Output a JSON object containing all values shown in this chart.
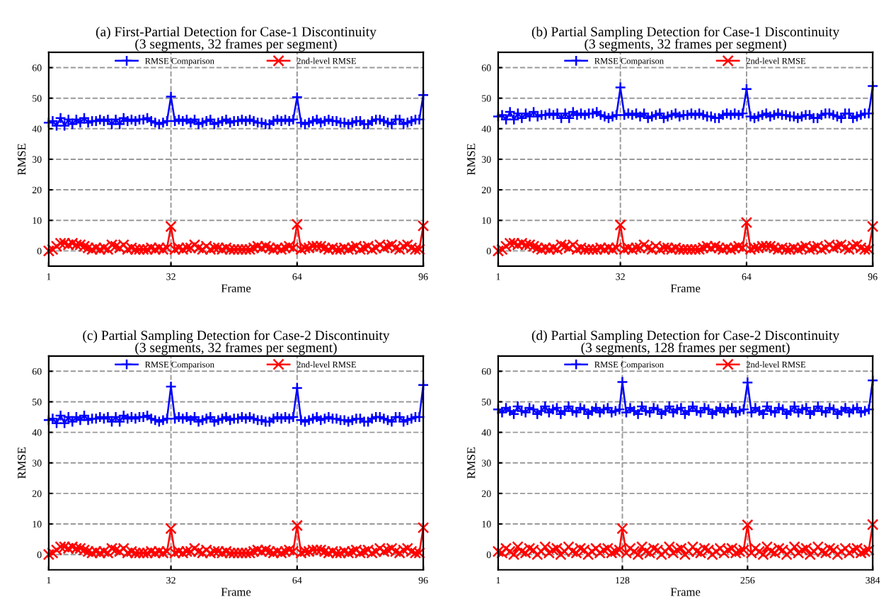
{
  "chart_data": [
    {
      "type": "line",
      "title": "(a) First-Partial Detection for Case-1 Discontinuity",
      "subtitle": "(3 segments, 32 frames per segment)",
      "xlabel": "Frame",
      "ylabel": "RMSE",
      "x": [
        1,
        2,
        3,
        4,
        5,
        6,
        7,
        8,
        9,
        10,
        11,
        12,
        13,
        14,
        15,
        16,
        17,
        18,
        19,
        20,
        21,
        22,
        23,
        24,
        25,
        26,
        27,
        28,
        29,
        30,
        31,
        32,
        33,
        34,
        35,
        36,
        37,
        38,
        39,
        40,
        41,
        42,
        43,
        44,
        45,
        46,
        47,
        48,
        49,
        50,
        51,
        52,
        53,
        54,
        55,
        56,
        57,
        58,
        59,
        60,
        61,
        62,
        63,
        64,
        65,
        66,
        67,
        68,
        69,
        70,
        71,
        72,
        73,
        74,
        75,
        76,
        77,
        78,
        79,
        80,
        81,
        82,
        83,
        84,
        85,
        86,
        87,
        88,
        89,
        90,
        91,
        92,
        93,
        94,
        95,
        96
      ],
      "xlim": [
        1,
        96
      ],
      "xticks": [
        1,
        32,
        64,
        96
      ],
      "ylim": [
        -5,
        65
      ],
      "yticks": [
        0,
        10,
        20,
        30,
        40,
        50,
        60
      ],
      "grid": true,
      "legend": "top",
      "line_style": "solid",
      "series": [
        {
          "name": "RMSE Comparison",
          "color": "#0000ff",
          "marker": "cross",
          "values": [
            42,
            42.5,
            41,
            43.5,
            41,
            43,
            41.5,
            43,
            42,
            43.5,
            42,
            42.5,
            42.5,
            43,
            42.5,
            43,
            41.5,
            43,
            41.5,
            43.5,
            42.5,
            43,
            42.5,
            43,
            43,
            43.5,
            42.5,
            42,
            41.5,
            42,
            42.5,
            50.5,
            42.5,
            43,
            42.5,
            43,
            42,
            43,
            41.5,
            42,
            42.5,
            43,
            41.5,
            42,
            42.5,
            43,
            42,
            42.5,
            42.5,
            43,
            42.5,
            43,
            42.5,
            42,
            42,
            41.5,
            41.5,
            42.5,
            43,
            42.5,
            43,
            42.5,
            43,
            50.3,
            42,
            41.5,
            42,
            42.5,
            43,
            42,
            42.5,
            43,
            42.5,
            42.5,
            42,
            42,
            41.5,
            42,
            42.5,
            42.5,
            41.5,
            41.5,
            42.5,
            43,
            43,
            42.5,
            42,
            41.5,
            43,
            43,
            41.5,
            42,
            42.5,
            43,
            43,
            51
          ]
        },
        {
          "name": "2nd-level RMSE",
          "color": "#ff0000",
          "marker": "x",
          "values": [
            0,
            0.5,
            1.5,
            2.5,
            2.5,
            2,
            2.5,
            2,
            2,
            1.5,
            1,
            0.5,
            1,
            0.5,
            1,
            0.5,
            2,
            1.5,
            1,
            2,
            0.5,
            1,
            0.5,
            0.5,
            0.5,
            0.5,
            1,
            0.5,
            1,
            0.5,
            1,
            8,
            0.5,
            1,
            0.5,
            1,
            1,
            2,
            1,
            0.5,
            1.5,
            0.5,
            1,
            1,
            0.5,
            1,
            0.5,
            0.5,
            0.5,
            0.5,
            0.5,
            0.5,
            1,
            1.5,
            1,
            1.5,
            1,
            0.5,
            1,
            0.5,
            1,
            1.5,
            1,
            8.7,
            0.5,
            1,
            1,
            1.5,
            1.5,
            1.5,
            1,
            0.5,
            1,
            0.5,
            0.5,
            1,
            0.5,
            1,
            1.5,
            0.5,
            1,
            1.5,
            0.5,
            1,
            2,
            1,
            1.5,
            2,
            1,
            0.5,
            1.5,
            2,
            1,
            0.5,
            0.5,
            8.2
          ]
        }
      ]
    },
    {
      "type": "line",
      "title": "(b) Partial Sampling Detection for Case-1 Discontinuity",
      "subtitle": "(3 segments, 32 frames per segment)",
      "xlabel": "Frame",
      "ylabel": "RMSE",
      "x": [
        1,
        2,
        3,
        4,
        5,
        6,
        7,
        8,
        9,
        10,
        11,
        12,
        13,
        14,
        15,
        16,
        17,
        18,
        19,
        20,
        21,
        22,
        23,
        24,
        25,
        26,
        27,
        28,
        29,
        30,
        31,
        32,
        33,
        34,
        35,
        36,
        37,
        38,
        39,
        40,
        41,
        42,
        43,
        44,
        45,
        46,
        47,
        48,
        49,
        50,
        51,
        52,
        53,
        54,
        55,
        56,
        57,
        58,
        59,
        60,
        61,
        62,
        63,
        64,
        65,
        66,
        67,
        68,
        69,
        70,
        71,
        72,
        73,
        74,
        75,
        76,
        77,
        78,
        79,
        80,
        81,
        82,
        83,
        84,
        85,
        86,
        87,
        88,
        89,
        90,
        91,
        92,
        93,
        94,
        95,
        96
      ],
      "xlim": [
        1,
        96
      ],
      "xticks": [
        1,
        32,
        64,
        96
      ],
      "ylim": [
        -5,
        65
      ],
      "yticks": [
        0,
        10,
        20,
        30,
        40,
        50,
        60
      ],
      "grid": true,
      "legend": "top",
      "line_style": "solid",
      "series": [
        {
          "name": "RMSE Comparison",
          "color": "#0000ff",
          "marker": "cross",
          "values": [
            44,
            44.5,
            43,
            45.5,
            43,
            45,
            43.5,
            45,
            44,
            45.5,
            44,
            44.5,
            44.5,
            45,
            44.5,
            45,
            43.5,
            45,
            43.5,
            45.5,
            44.5,
            45,
            44.5,
            45,
            45,
            45.5,
            44.5,
            44,
            43.5,
            44,
            44.5,
            53.5,
            44.5,
            45,
            44.5,
            45,
            44,
            45,
            43.5,
            44,
            44.5,
            45,
            43.5,
            44,
            44.5,
            45,
            44,
            44.5,
            44.5,
            45,
            44.5,
            45,
            44.5,
            44,
            44,
            43.5,
            43.5,
            44.5,
            45,
            44.5,
            45,
            44.5,
            45,
            53,
            44,
            43.5,
            44,
            44.5,
            45,
            44,
            44.5,
            45,
            44.5,
            44.5,
            44,
            44,
            43.5,
            44,
            44.5,
            44.5,
            43.5,
            43.5,
            44.5,
            45,
            45,
            44.5,
            44,
            43.5,
            45,
            45,
            43.5,
            44,
            44.5,
            45,
            45,
            54
          ]
        },
        {
          "name": "2nd-level RMSE",
          "color": "#ff0000",
          "marker": "x",
          "values": [
            0,
            0.5,
            1.5,
            2.5,
            2.5,
            2,
            2.5,
            2,
            2,
            1.5,
            1,
            0.5,
            1,
            0.5,
            1,
            0.5,
            2,
            1.5,
            1,
            2,
            0.5,
            1,
            0.5,
            0.5,
            0.5,
            0.5,
            1,
            0.5,
            1,
            0.5,
            1,
            8.5,
            0.5,
            1,
            0.5,
            1,
            1,
            2,
            1,
            0.5,
            1.5,
            0.5,
            1,
            1,
            0.5,
            1,
            0.5,
            0.5,
            0.5,
            0.5,
            0.5,
            0.5,
            1,
            1.5,
            1,
            1.5,
            1,
            0.5,
            1,
            0.5,
            1,
            1.5,
            1,
            9.3,
            0.5,
            1,
            1,
            1.5,
            1.5,
            1.5,
            1,
            0.5,
            1,
            0.5,
            0.5,
            1,
            0.5,
            1,
            1.5,
            0.5,
            1,
            1.5,
            0.5,
            1,
            2,
            1,
            1.5,
            2,
            1,
            0.5,
            1.5,
            2,
            1,
            0.5,
            0.5,
            8
          ]
        }
      ]
    },
    {
      "type": "line",
      "title": "(c) Partial Sampling Detection for Case-2 Discontinuity",
      "subtitle": "(3 segments, 32 frames per segment)",
      "xlabel": "Frame",
      "ylabel": "RMSE",
      "x": [
        1,
        2,
        3,
        4,
        5,
        6,
        7,
        8,
        9,
        10,
        11,
        12,
        13,
        14,
        15,
        16,
        17,
        18,
        19,
        20,
        21,
        22,
        23,
        24,
        25,
        26,
        27,
        28,
        29,
        30,
        31,
        32,
        33,
        34,
        35,
        36,
        37,
        38,
        39,
        40,
        41,
        42,
        43,
        44,
        45,
        46,
        47,
        48,
        49,
        50,
        51,
        52,
        53,
        54,
        55,
        56,
        57,
        58,
        59,
        60,
        61,
        62,
        63,
        64,
        65,
        66,
        67,
        68,
        69,
        70,
        71,
        72,
        73,
        74,
        75,
        76,
        77,
        78,
        79,
        80,
        81,
        82,
        83,
        84,
        85,
        86,
        87,
        88,
        89,
        90,
        91,
        92,
        93,
        94,
        95,
        96
      ],
      "xlim": [
        1,
        96
      ],
      "xticks": [
        1,
        32,
        64,
        96
      ],
      "ylim": [
        -5,
        65
      ],
      "yticks": [
        0,
        10,
        20,
        30,
        40,
        50,
        60
      ],
      "grid": true,
      "legend": "top",
      "line_style": "solid",
      "series": [
        {
          "name": "RMSE Comparison",
          "color": "#0000ff",
          "marker": "cross",
          "values": [
            44,
            44.5,
            43,
            45.5,
            43,
            45,
            43.5,
            45,
            44,
            45.5,
            44,
            44.5,
            44.5,
            45,
            44.5,
            45,
            43.5,
            45,
            43.5,
            45.5,
            44.5,
            45,
            44.5,
            45,
            45,
            45.5,
            44.5,
            44,
            43.5,
            44,
            44.5,
            55,
            44.5,
            45,
            44.5,
            45,
            44,
            45,
            43.5,
            44,
            44.5,
            45,
            43.5,
            44,
            44.5,
            45,
            44,
            44.5,
            44.5,
            45,
            44.5,
            45,
            44.5,
            44,
            44,
            43.5,
            43.5,
            44.5,
            45,
            44.5,
            45,
            44.5,
            45,
            54.5,
            44,
            43.5,
            44,
            44.5,
            45,
            44,
            44.5,
            45,
            44.5,
            44.5,
            44,
            44,
            43.5,
            44,
            44.5,
            44.5,
            43.5,
            43.5,
            44.5,
            45,
            45,
            44.5,
            44,
            43.5,
            45,
            45,
            43.5,
            44,
            44.5,
            45,
            45,
            55.5
          ]
        },
        {
          "name": "2nd-level RMSE",
          "color": "#ff0000",
          "marker": "x",
          "values": [
            0,
            0.5,
            1.5,
            2.5,
            2.5,
            2,
            2.5,
            2,
            2,
            1.5,
            1,
            0.5,
            1,
            0.5,
            1,
            0.5,
            2,
            1.5,
            1,
            2,
            0.5,
            1,
            0.5,
            0.5,
            0.5,
            0.5,
            1,
            0.5,
            1,
            0.5,
            1,
            8.5,
            0.5,
            1,
            0.5,
            1,
            1,
            2,
            1,
            0.5,
            1.5,
            0.5,
            1,
            1,
            0.5,
            1,
            0.5,
            0.5,
            0.5,
            0.5,
            0.5,
            0.5,
            1,
            1.5,
            1,
            1.5,
            1,
            0.5,
            1,
            0.5,
            1,
            1.5,
            1,
            9.5,
            0.5,
            1,
            1,
            1.5,
            1.5,
            1.5,
            1,
            0.5,
            1,
            0.5,
            0.5,
            1,
            0.5,
            1,
            1.5,
            0.5,
            1,
            1.5,
            0.5,
            1,
            2,
            1,
            1.5,
            2,
            1,
            0.5,
            1.5,
            2,
            1,
            0.5,
            0.5,
            8.8
          ]
        }
      ]
    },
    {
      "type": "line",
      "title": "(d) Partial Sampling Detection for Case-2 Discontinuity",
      "subtitle": "(3 segments, 128 frames per segment)",
      "xlabel": "Frame",
      "ylabel": "RMSE",
      "x": [
        1,
        5,
        9,
        13,
        17,
        21,
        25,
        29,
        33,
        37,
        41,
        45,
        49,
        53,
        57,
        61,
        65,
        69,
        73,
        77,
        81,
        85,
        89,
        93,
        97,
        101,
        105,
        109,
        113,
        117,
        121,
        125,
        128,
        132,
        136,
        140,
        144,
        148,
        152,
        156,
        160,
        164,
        168,
        172,
        176,
        180,
        184,
        188,
        192,
        196,
        200,
        204,
        208,
        212,
        216,
        220,
        224,
        228,
        232,
        236,
        240,
        244,
        248,
        252,
        256,
        260,
        264,
        268,
        272,
        276,
        280,
        284,
        288,
        292,
        296,
        300,
        304,
        308,
        312,
        316,
        320,
        324,
        328,
        332,
        336,
        340,
        344,
        348,
        352,
        356,
        360,
        364,
        368,
        372,
        376,
        380,
        384
      ],
      "xlim": [
        1,
        384
      ],
      "xticks": [
        1,
        128,
        256,
        384
      ],
      "ylim": [
        -5,
        65
      ],
      "yticks": [
        0,
        10,
        20,
        30,
        40,
        50,
        60
      ],
      "grid": true,
      "legend": "top",
      "line_style": "solid",
      "series": [
        {
          "name": "RMSE Comparison",
          "color": "#0000ff",
          "marker": "cross",
          "values": [
            47.5,
            46.5,
            48,
            47,
            46,
            48.5,
            47,
            46.5,
            48,
            47.5,
            46,
            47,
            48.5,
            46.5,
            47.5,
            48,
            46,
            47,
            48.5,
            47,
            46.5,
            48,
            47.5,
            46,
            47,
            48,
            46.5,
            47.5,
            48,
            46.5,
            47,
            47.5,
            56.5,
            46.5,
            48,
            47,
            46,
            48.5,
            47,
            46.5,
            48,
            47.5,
            46,
            47,
            48.5,
            46.5,
            47.5,
            48,
            46,
            47,
            48.5,
            47,
            46.5,
            48,
            47.5,
            46,
            47,
            48,
            46.5,
            47.5,
            48,
            46.5,
            47,
            47.5,
            56.3,
            46.5,
            48,
            47,
            46,
            48.5,
            47,
            46.5,
            48,
            47.5,
            46,
            47,
            48.5,
            46.5,
            47.5,
            48,
            46,
            47,
            48.5,
            47,
            46.5,
            48,
            47.5,
            46,
            47,
            48,
            46.5,
            47.5,
            48,
            46.5,
            47,
            47.5,
            57
          ]
        },
        {
          "name": "2nd-level RMSE",
          "color": "#ff0000",
          "marker": "x",
          "values": [
            1,
            0.5,
            2,
            1,
            0,
            2.5,
            1,
            0.5,
            2,
            1.5,
            0,
            1,
            2.5,
            0.5,
            1.5,
            2,
            0,
            1,
            2.5,
            1,
            0.5,
            2,
            1.5,
            0,
            1,
            2,
            0.5,
            1.5,
            2,
            0.5,
            1,
            1.5,
            8.5,
            0.5,
            2,
            1,
            0,
            2.5,
            1,
            0.5,
            2,
            1.5,
            0,
            1,
            2.5,
            0.5,
            1.5,
            2,
            0,
            1,
            2.5,
            1,
            0.5,
            2,
            1.5,
            0,
            1,
            2,
            0.5,
            1.5,
            2,
            0.5,
            1,
            1.5,
            9.7,
            0.5,
            2,
            1,
            0,
            2.5,
            1,
            0.5,
            2,
            1.5,
            0,
            1,
            2.5,
            0.5,
            1.5,
            2,
            0,
            1,
            2.5,
            1,
            0.5,
            2,
            1.5,
            0,
            1,
            2,
            0.5,
            1.5,
            2,
            0.5,
            1,
            1.5,
            9.8
          ]
        }
      ]
    }
  ]
}
